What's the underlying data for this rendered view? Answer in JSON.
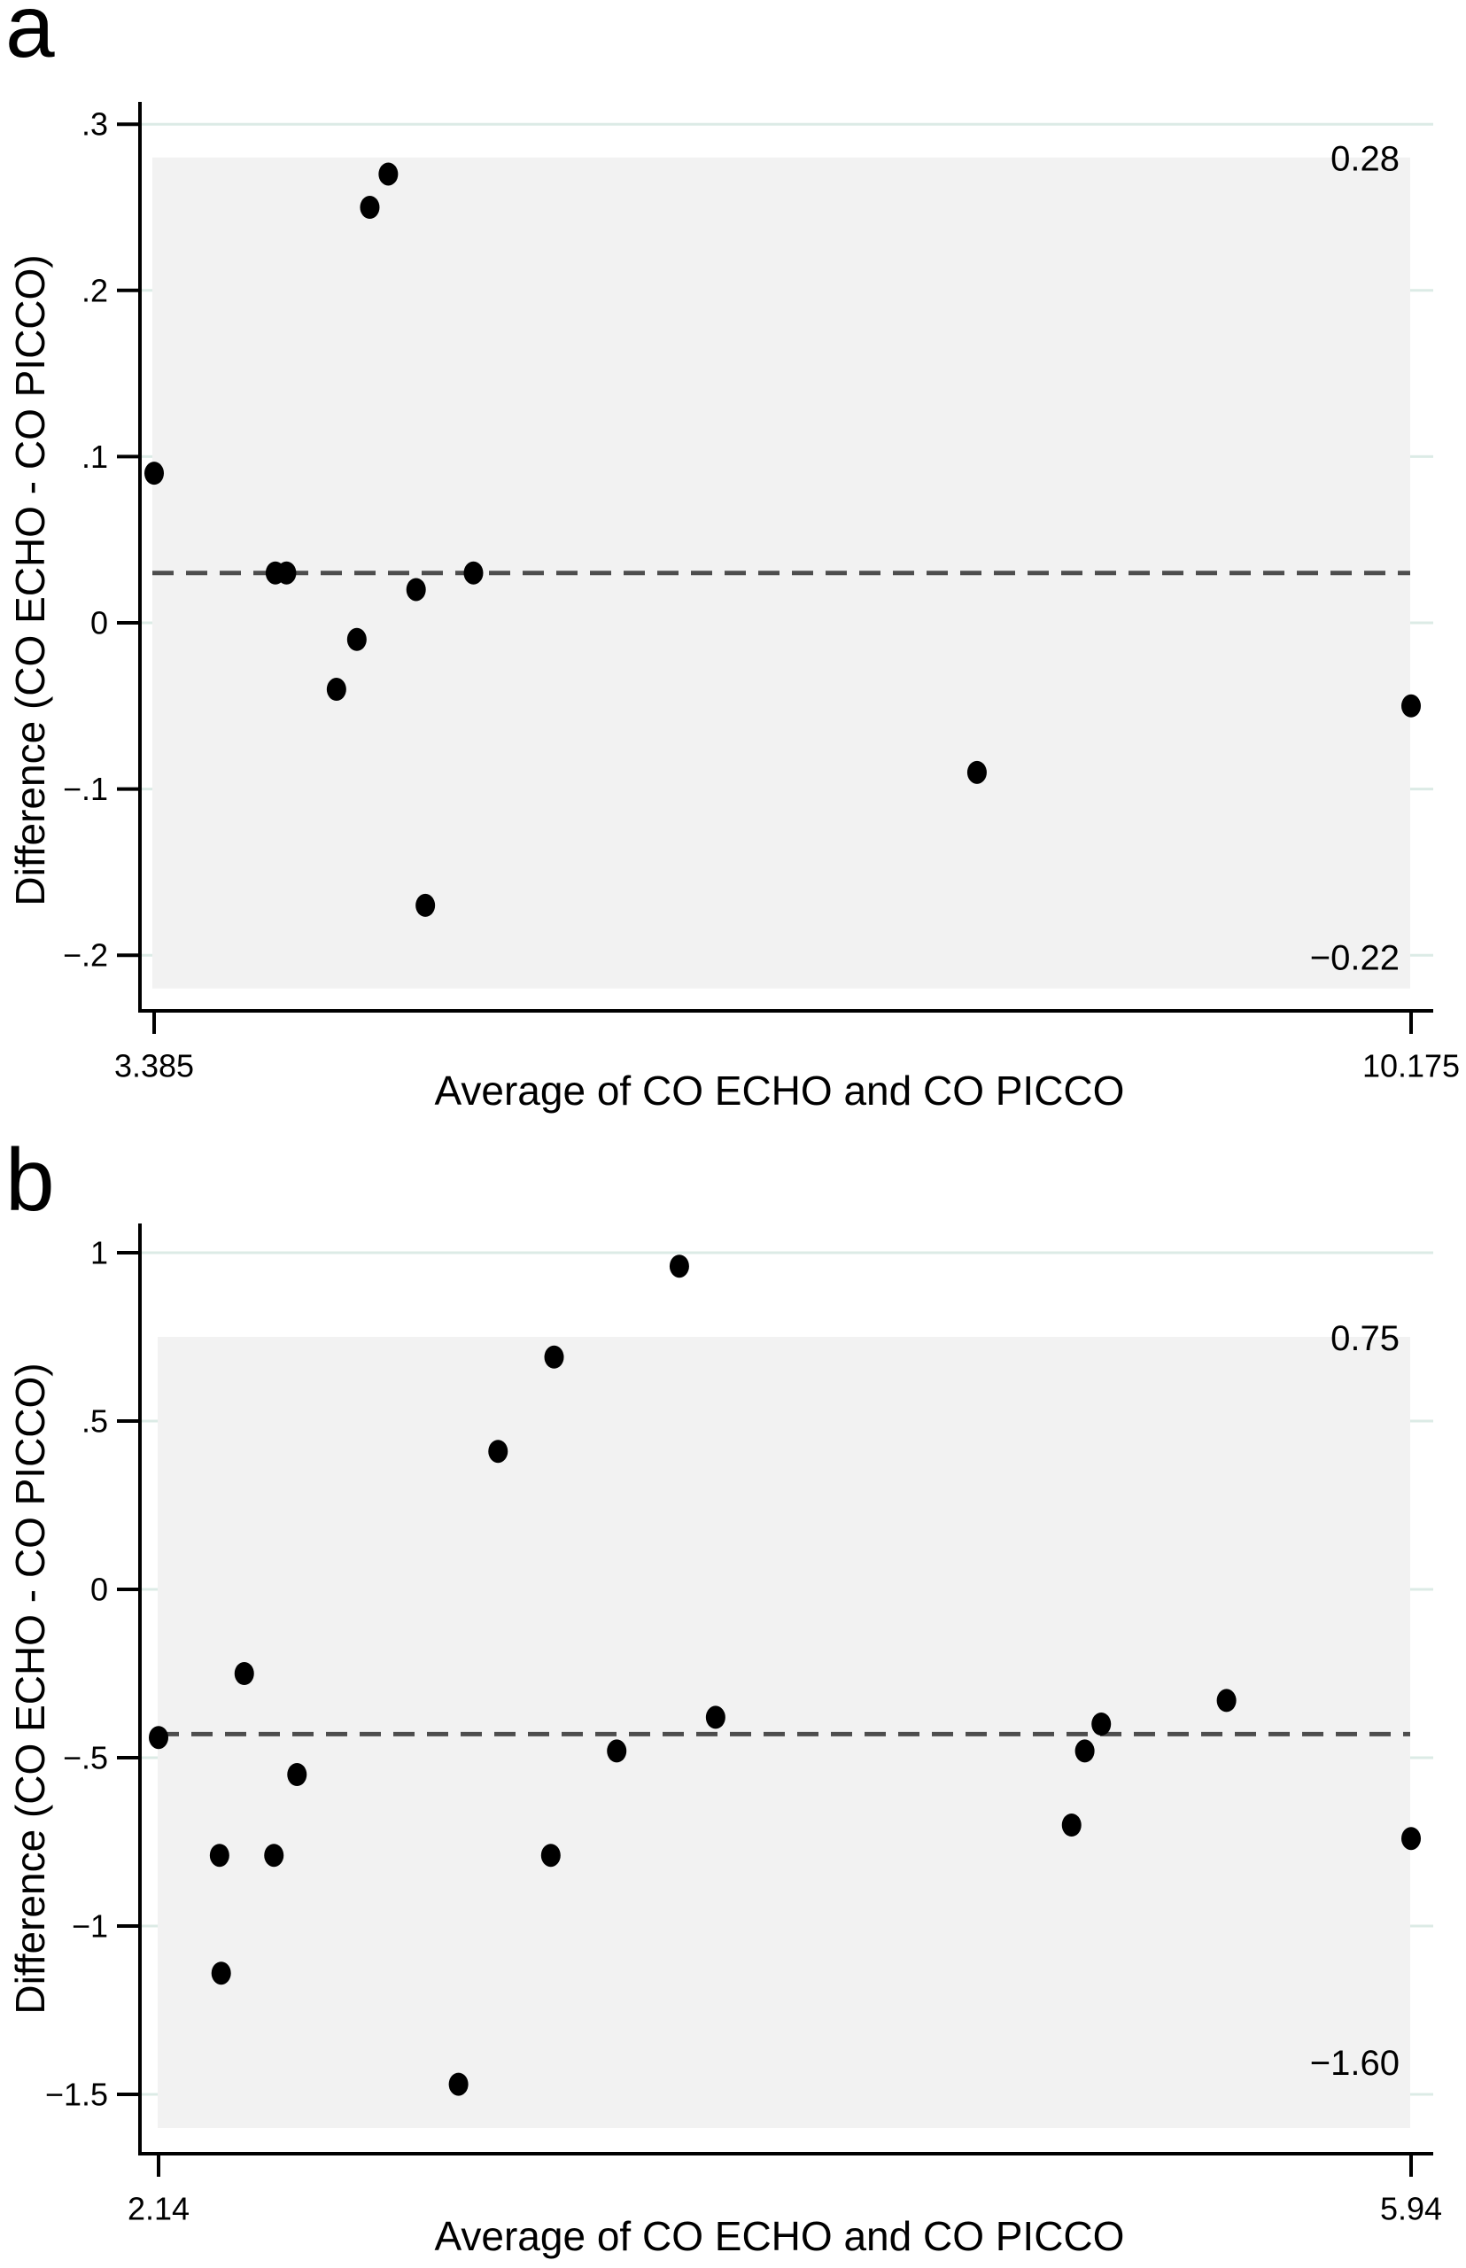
{
  "figure": {
    "panel_labels": [
      "a",
      "b"
    ]
  },
  "colors": {
    "background": "#ffffff",
    "gridline": "#dcebe6",
    "loa_region": "#f2f2f2",
    "mean_line": "#4d4d4d",
    "point": "#000000",
    "axis": "#000000"
  },
  "chart_data": [
    {
      "type": "scatter",
      "panel": "a",
      "xlabel": "Average of CO ECHO and CO PICCO",
      "ylabel": "Difference (CO ECHO - CO PICCO)",
      "x_ticks": [
        3.385,
        10.175
      ],
      "x_tick_labels": [
        "3.385",
        "10.175"
      ],
      "y_ticks": [
        0.3,
        0.2,
        0.1,
        0,
        -0.1,
        -0.2
      ],
      "y_tick_labels": [
        ".3",
        ".2",
        ".1",
        "0",
        "−.1",
        "−.2"
      ],
      "xlim": [
        3.385,
        10.175
      ],
      "ylim": [
        -0.24,
        0.32
      ],
      "grid": true,
      "legend": false,
      "mean_difference": 0.03,
      "upper_loa": 0.28,
      "lower_loa": -0.22,
      "upper_loa_label": "0.28",
      "lower_loa_label": "−0.22",
      "points": [
        [
          3.385,
          0.09
        ],
        [
          4.04,
          0.03
        ],
        [
          4.1,
          0.03
        ],
        [
          4.37,
          -0.04
        ],
        [
          4.48,
          -0.01
        ],
        [
          4.55,
          0.25
        ],
        [
          4.65,
          0.27
        ],
        [
          4.8,
          0.02
        ],
        [
          4.85,
          -0.17
        ],
        [
          5.11,
          0.03
        ],
        [
          7.83,
          -0.09
        ],
        [
          10.175,
          -0.05
        ]
      ]
    },
    {
      "type": "scatter",
      "panel": "b",
      "xlabel": "Average of CO ECHO and CO PICCO",
      "ylabel": "Difference (CO ECHO - CO PICCO)",
      "x_ticks": [
        2.14,
        5.94
      ],
      "x_tick_labels": [
        "2.14",
        "5.94"
      ],
      "y_ticks": [
        1,
        0.5,
        0,
        -0.5,
        -1,
        -1.5
      ],
      "y_tick_labels": [
        "1",
        ".5",
        "0",
        "−.5",
        "−1",
        "−1.5"
      ],
      "xlim": [
        2.14,
        5.94
      ],
      "ylim": [
        -1.7,
        1.05
      ],
      "grid": true,
      "legend": false,
      "mean_difference": -0.43,
      "upper_loa": 0.75,
      "lower_loa": -1.6,
      "upper_loa_label": "0.75",
      "lower_loa_label": "−1.60",
      "points": [
        [
          2.14,
          -0.44
        ],
        [
          2.325,
          -0.79
        ],
        [
          2.33,
          -1.14
        ],
        [
          2.4,
          -0.25
        ],
        [
          2.49,
          -0.79
        ],
        [
          2.56,
          -0.55
        ],
        [
          3.05,
          -1.47
        ],
        [
          3.17,
          0.41
        ],
        [
          3.33,
          -0.79
        ],
        [
          3.34,
          0.69
        ],
        [
          3.53,
          -0.48
        ],
        [
          3.72,
          0.96
        ],
        [
          3.83,
          -0.38
        ],
        [
          4.91,
          -0.7
        ],
        [
          4.95,
          -0.48
        ],
        [
          5.0,
          -0.4
        ],
        [
          5.38,
          -0.33
        ],
        [
          5.94,
          -0.74
        ]
      ]
    }
  ]
}
